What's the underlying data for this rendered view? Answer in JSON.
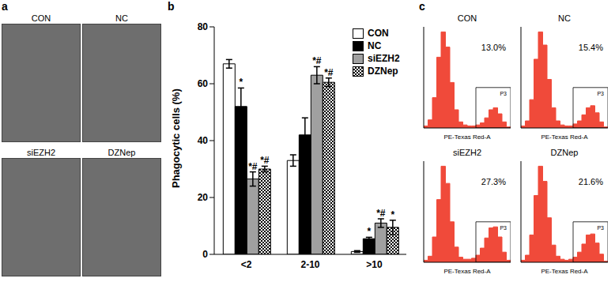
{
  "panel_a": {
    "label": "a",
    "images": [
      "CON",
      "NC",
      "siEZH2",
      "DZNep"
    ]
  },
  "chart_data": [
    {
      "panel": "b",
      "type": "bar",
      "categories": [
        "<2",
        "2-10",
        ">10"
      ],
      "ylabel": "Phagocytic cells (%)",
      "ylim": [
        0,
        80
      ],
      "yticks": [
        0,
        20,
        40,
        60,
        80
      ],
      "legend": "upper right",
      "series": [
        {
          "name": "CON",
          "color": "#ffffff",
          "values": [
            67,
            33,
            1
          ],
          "errors": [
            1.5,
            2,
            0.3
          ],
          "significance": [
            null,
            null,
            null
          ]
        },
        {
          "name": "NC",
          "color": "#000000",
          "values": [
            52,
            42,
            5.5
          ],
          "errors": [
            6.5,
            6,
            0.5
          ],
          "significance": [
            "*",
            null,
            "*"
          ]
        },
        {
          "name": "siEZH2",
          "color": "#a0a0a0",
          "values": [
            26.5,
            63,
            11
          ],
          "errors": [
            2.5,
            3,
            1.5
          ],
          "significance": [
            "*#",
            "*#",
            "*#"
          ]
        },
        {
          "name": "DZNep",
          "color": "#000000",
          "marker": "checker",
          "values": [
            30,
            60.5,
            9.5
          ],
          "errors": [
            1,
            1.5,
            2.5
          ],
          "significance": [
            "*#",
            "*#",
            "*"
          ]
        }
      ]
    },
    {
      "panel": "c",
      "type": "histogram",
      "title": "CON",
      "xlabel": "PE-Texas Red-A",
      "tick_labels": false,
      "color": "#f04a3a",
      "xlim": [
        1,
        5
      ],
      "ylim": [
        0,
        100
      ],
      "bins": [
        1.0,
        1.2,
        1.4,
        1.6,
        1.8,
        2.0,
        2.2,
        2.4,
        2.6,
        2.8,
        3.0,
        3.2,
        3.4,
        3.6,
        3.8,
        4.0,
        4.2,
        4.4,
        4.6,
        4.8,
        5.0
      ],
      "counts": [
        2,
        8,
        30,
        70,
        95,
        80,
        45,
        18,
        6,
        3,
        2,
        2,
        3,
        5,
        10,
        18,
        20,
        14,
        6,
        1
      ],
      "gate": {
        "label": "P3",
        "xrange": [
          3.4,
          5.0
        ],
        "yrange": [
          0,
          40
        ],
        "value": 13.0,
        "value_label": "13.0%"
      }
    },
    {
      "panel": "c",
      "type": "histogram",
      "title": "NC",
      "xlabel": "PE-Texas Red-A",
      "tick_labels": false,
      "color": "#f04a3a",
      "xlim": [
        1,
        5
      ],
      "ylim": [
        0,
        100
      ],
      "bins": [
        1.0,
        1.2,
        1.4,
        1.6,
        1.8,
        2.0,
        2.2,
        2.4,
        2.6,
        2.8,
        3.0,
        3.2,
        3.4,
        3.6,
        3.8,
        4.0,
        4.2,
        4.4,
        4.6,
        4.8,
        5.0
      ],
      "counts": [
        2,
        7,
        28,
        68,
        95,
        82,
        48,
        20,
        7,
        3,
        2,
        2,
        4,
        7,
        13,
        20,
        22,
        15,
        6,
        1
      ],
      "gate": {
        "label": "P3",
        "xrange": [
          3.4,
          5.0
        ],
        "yrange": [
          0,
          40
        ],
        "value": 15.4,
        "value_label": "15.4%"
      }
    },
    {
      "panel": "c",
      "type": "histogram",
      "title": "siEZH2",
      "xlabel": "PE-Texas Red-A",
      "tick_labels": false,
      "color": "#f04a3a",
      "xlim": [
        1,
        5
      ],
      "ylim": [
        0,
        100
      ],
      "bins": [
        1.0,
        1.2,
        1.4,
        1.6,
        1.8,
        2.0,
        2.2,
        2.4,
        2.6,
        2.8,
        3.0,
        3.2,
        3.4,
        3.6,
        3.8,
        4.0,
        4.2,
        4.4,
        4.6,
        4.8,
        5.0
      ],
      "counts": [
        2,
        6,
        25,
        62,
        95,
        78,
        40,
        15,
        5,
        3,
        3,
        4,
        7,
        14,
        24,
        34,
        35,
        25,
        10,
        2
      ],
      "gate": {
        "label": "P3",
        "xrange": [
          3.4,
          5.0
        ],
        "yrange": [
          0,
          40
        ],
        "value": 27.3,
        "value_label": "27.3%"
      }
    },
    {
      "panel": "c",
      "type": "histogram",
      "title": "DZNep",
      "xlabel": "PE-Texas Red-A",
      "tick_labels": false,
      "color": "#f04a3a",
      "xlim": [
        1,
        5
      ],
      "ylim": [
        0,
        100
      ],
      "bins": [
        1.0,
        1.2,
        1.4,
        1.6,
        1.8,
        2.0,
        2.2,
        2.4,
        2.6,
        2.8,
        3.0,
        3.2,
        3.4,
        3.6,
        3.8,
        4.0,
        4.2,
        4.4,
        4.6,
        4.8,
        5.0
      ],
      "counts": [
        2,
        7,
        27,
        66,
        95,
        80,
        44,
        17,
        6,
        3,
        2,
        3,
        5,
        10,
        18,
        27,
        28,
        19,
        8,
        1
      ],
      "gate": {
        "label": "P3",
        "xrange": [
          3.4,
          5.0
        ],
        "yrange": [
          0,
          40
        ],
        "value": 21.6,
        "value_label": "21.6%"
      }
    }
  ]
}
